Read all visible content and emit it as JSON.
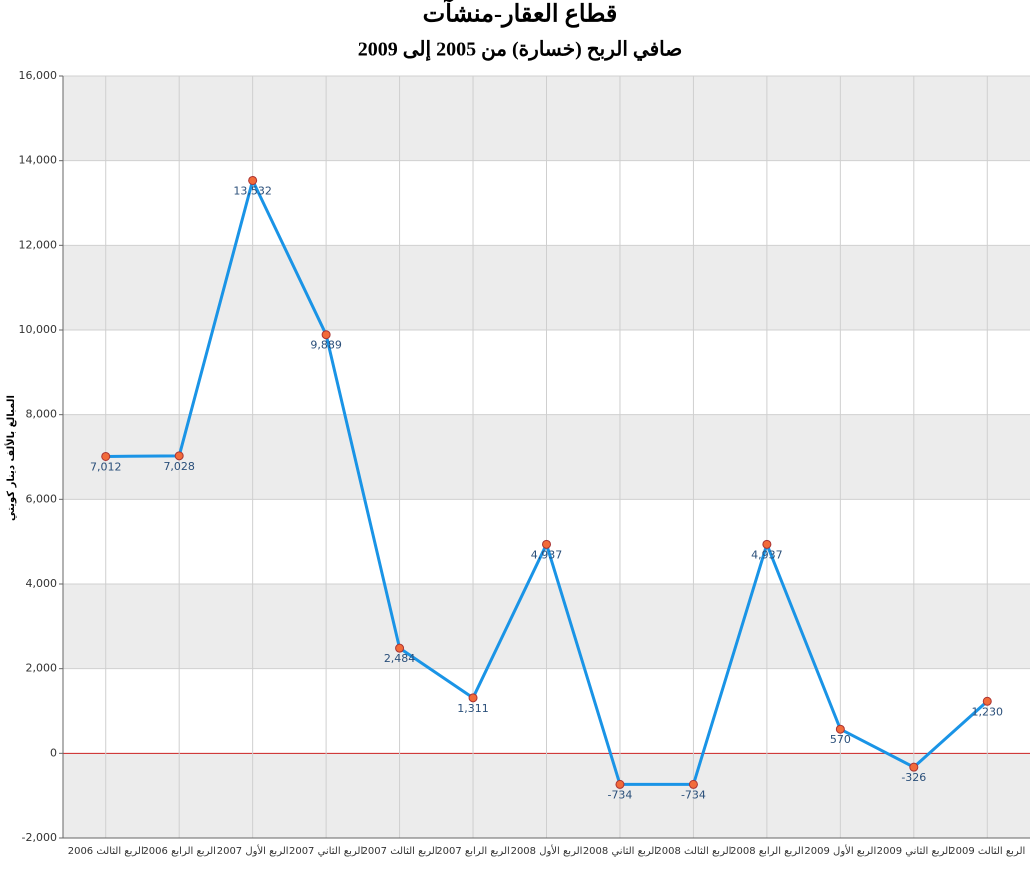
{
  "chart_data": {
    "type": "line",
    "title": "قطاع العقار-منشآت",
    "subtitle": "صافي الربح (خسارة) من 2005 إلى 2009",
    "y_label": "المبالغ بالألف دينار كويتي",
    "categories": [
      "الربع الثالث 2006",
      "الربع الرابع 2006",
      "الربع الأول 2007",
      "الربع الثاني 2007",
      "الربع الثالث 2007",
      "الربع الرابع 2007",
      "الربع الأول 2008",
      "الربع الثاني 2008",
      "الربع الثالث 2008",
      "الربع الرابع 2008",
      "الربع الأول 2009",
      "الربع الثاني 2009",
      "الربع الثالث 2009"
    ],
    "series": [
      {
        "name": "صافي الربح",
        "color": "#1a94e6",
        "marker_color": "#f26b3a",
        "values": [
          7012,
          7028,
          13532,
          9889,
          2484,
          1311,
          4937,
          -734,
          -734,
          4937,
          570,
          -326,
          1230
        ],
        "value_labels": [
          "7,012",
          "7,028",
          "13,532",
          "9,889",
          "2,484",
          "1,311",
          "4,937",
          "-734",
          "-734",
          "4,937",
          "570",
          "-326",
          "1,230"
        ]
      }
    ],
    "ylim": [
      -2000,
      16000
    ],
    "yticks": [
      {
        "value": -2000,
        "label": "-2,000"
      },
      0,
      {
        "value": 2000,
        "label": "2,000"
      },
      {
        "value": 4000,
        "label": "4,000"
      },
      {
        "value": 6000,
        "label": "6,000"
      },
      {
        "value": 8000,
        "label": "8,000"
      },
      {
        "value": 10000,
        "label": "10,000"
      },
      {
        "value": 12000,
        "label": "12,000"
      },
      {
        "value": 14000,
        "label": "14,000"
      },
      {
        "value": 16000,
        "label": "16,000"
      }
    ],
    "grid": true,
    "zero_line_color": "#cc2222"
  }
}
